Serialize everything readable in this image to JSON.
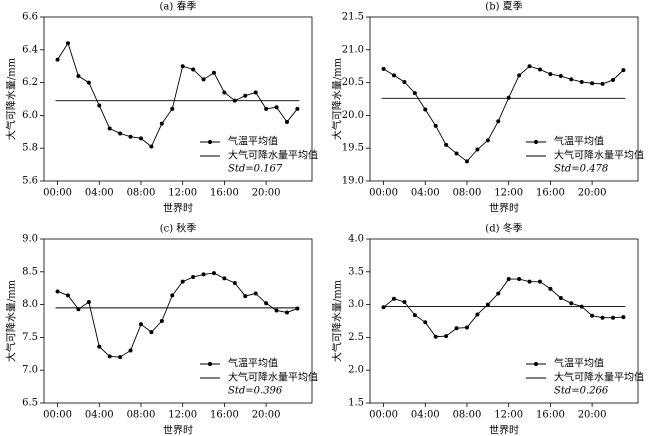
{
  "chart_data": [
    {
      "type": "line",
      "title": "(a) 春季",
      "xlabel": "世界时",
      "ylabel": "大气可降水量/mm",
      "categories": [
        "00:00",
        null,
        null,
        null,
        "04:00",
        null,
        null,
        null,
        "08:00",
        null,
        null,
        null,
        "12:00",
        null,
        null,
        null,
        "16:00",
        null,
        null,
        null,
        "20:00",
        null,
        null,
        null
      ],
      "series": [
        {
          "name": "气温平均值",
          "color": "#000000",
          "values": [
            6.34,
            6.44,
            6.24,
            6.2,
            6.06,
            5.92,
            5.89,
            5.87,
            5.86,
            5.81,
            5.95,
            6.04,
            6.3,
            6.28,
            6.22,
            6.26,
            6.14,
            6.09,
            6.12,
            6.14,
            6.04,
            6.05,
            5.96,
            6.04
          ]
        }
      ],
      "reference_line": {
        "name": "大气可降水量平均值",
        "value": 6.09,
        "color": "#000000"
      },
      "annotation": "Std=0.167",
      "ylim": [
        5.6,
        6.6
      ],
      "yticks": [
        5.6,
        5.8,
        {
          "value": 6,
          "label": "6.0"
        },
        6.2,
        6.4,
        6.6
      ]
    },
    {
      "type": "line",
      "title": "(b) 夏季",
      "xlabel": "世界时",
      "ylabel": "大气可降水量/mm",
      "categories": [
        "00:00",
        null,
        null,
        null,
        "04:00",
        null,
        null,
        null,
        "08:00",
        null,
        null,
        null,
        "12:00",
        null,
        null,
        null,
        "16:00",
        null,
        null,
        null,
        "20:00",
        null,
        null,
        null
      ],
      "series": [
        {
          "name": "气温平均值",
          "color": "#000000",
          "values": [
            20.71,
            20.61,
            20.51,
            20.34,
            20.09,
            19.84,
            19.55,
            19.42,
            19.3,
            19.48,
            19.62,
            19.91,
            20.27,
            20.61,
            20.75,
            20.7,
            20.63,
            20.6,
            20.55,
            20.51,
            20.49,
            20.48,
            20.54,
            20.69
          ]
        }
      ],
      "reference_line": {
        "name": "大气可降水量平均值",
        "value": 20.26,
        "color": "#000000"
      },
      "annotation": "Std=0.478",
      "ylim": [
        19,
        21.5
      ],
      "yticks": [
        {
          "value": 19,
          "label": "19.0"
        },
        19.5,
        {
          "value": 20,
          "label": "20.0"
        },
        20.5,
        {
          "value": 21,
          "label": "21.0"
        },
        21.5
      ]
    },
    {
      "type": "line",
      "title": "(c) 秋季",
      "xlabel": "世界时",
      "ylabel": "大气可降水量/mm",
      "categories": [
        "00:00",
        null,
        null,
        null,
        "04:00",
        null,
        null,
        null,
        "08:00",
        null,
        null,
        null,
        "12:00",
        null,
        null,
        null,
        "16:00",
        null,
        null,
        null,
        "20:00",
        null,
        null,
        null
      ],
      "series": [
        {
          "name": "气温平均值",
          "color": "#000000",
          "values": [
            8.2,
            8.14,
            7.93,
            8.04,
            7.36,
            7.21,
            7.2,
            7.3,
            7.7,
            7.58,
            7.75,
            8.14,
            8.35,
            8.42,
            8.46,
            8.48,
            8.4,
            8.33,
            8.13,
            8.17,
            8.02,
            7.91,
            7.88,
            7.94
          ]
        }
      ],
      "reference_line": {
        "name": "大气可降水量平均值",
        "value": 7.95,
        "color": "#000000"
      },
      "annotation": "Std=0.396",
      "ylim": [
        6.5,
        9
      ],
      "yticks": [
        6.5,
        {
          "value": 7,
          "label": "7.0"
        },
        7.5,
        {
          "value": 8,
          "label": "8.0"
        },
        8.5,
        {
          "value": 9,
          "label": "9.0"
        }
      ]
    },
    {
      "type": "line",
      "title": "(d) 冬季",
      "xlabel": "世界时",
      "ylabel": "大气可降水量/mm",
      "categories": [
        "00:00",
        null,
        null,
        null,
        "04:00",
        null,
        null,
        null,
        "08:00",
        null,
        null,
        null,
        "12:00",
        null,
        null,
        null,
        "16:00",
        null,
        null,
        null,
        "20:00",
        null,
        null,
        null
      ],
      "series": [
        {
          "name": "气温平均值",
          "color": "#000000",
          "values": [
            2.96,
            3.09,
            3.04,
            2.84,
            2.73,
            2.51,
            2.52,
            2.64,
            2.65,
            2.85,
            3.0,
            3.17,
            3.39,
            3.39,
            3.35,
            3.35,
            3.24,
            3.1,
            3.02,
            2.97,
            2.83,
            2.8,
            2.8,
            2.81
          ]
        }
      ],
      "reference_line": {
        "name": "大气可降水量平均值",
        "value": 2.97,
        "color": "#000000"
      },
      "annotation": "Std=0.266",
      "ylim": [
        1.5,
        4
      ],
      "yticks": [
        1.5,
        {
          "value": 2,
          "label": "2.0"
        },
        2.5,
        {
          "value": 3,
          "label": "3.0"
        },
        3.5,
        {
          "value": 4,
          "label": "4.0"
        }
      ]
    }
  ]
}
